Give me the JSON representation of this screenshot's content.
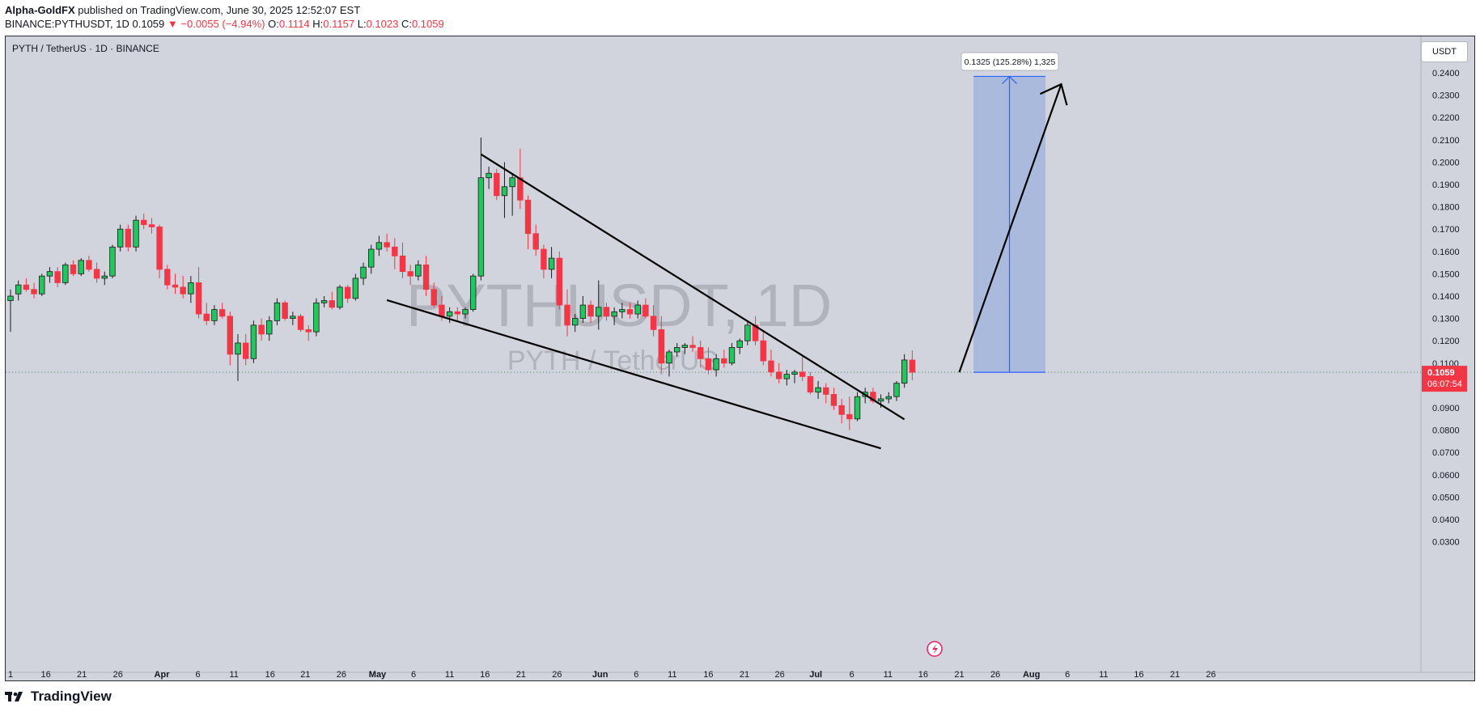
{
  "header": {
    "author": "Alpha-GoldFX",
    "published": "published on TradingView.com, June 30, 2025 12:52:07 EST",
    "symbol": "BINANCE:PYTHUSDT, 1D",
    "last": "0.1059",
    "change": "−0.0055 (−4.94%)",
    "o_label": "O:",
    "o": "0.1114",
    "h_label": "H:",
    "h": "0.1157",
    "l_label": "L:",
    "l": "0.1023",
    "c_label": "C:",
    "c": "0.1059"
  },
  "chart": {
    "symbol_title": "PYTH / TetherUS · 1D · BINANCE",
    "currency_button": "USDT",
    "watermark_big": "PYTHUSDT, 1D",
    "watermark_small": "PYTH / TetherUS",
    "price_tag": "0.1059",
    "countdown": "06:07:54",
    "measure_label": "0.1325 (125.28%) 1,325"
  },
  "chart_data": {
    "type": "candlestick",
    "ylim": [
      0.021,
      0.2505
    ],
    "y_ticks": [
      "0.2400",
      "0.2300",
      "0.2200",
      "0.2100",
      "0.2000",
      "0.1900",
      "0.1800",
      "0.1700",
      "0.1600",
      "0.1500",
      "0.1400",
      "0.1300",
      "0.1200",
      "0.1100",
      "0.0900",
      "0.0800",
      "0.0700",
      "0.0600",
      "0.0500",
      "0.0400",
      "0.0300"
    ],
    "x_ticks": [
      "1",
      "16",
      "21",
      "26",
      "Apr",
      "6",
      "11",
      "16",
      "21",
      "26",
      "May",
      "6",
      "11",
      "16",
      "21",
      "26",
      "Jun",
      "6",
      "11",
      "16",
      "21",
      "26",
      "Jul",
      "6",
      "11",
      "16",
      "21",
      "26",
      "Aug",
      "6",
      "11",
      "16",
      "21",
      "26"
    ],
    "candles": [
      [
        0.138,
        0.143,
        0.124,
        0.14
      ],
      [
        0.141,
        0.147,
        0.138,
        0.145
      ],
      [
        0.145,
        0.148,
        0.142,
        0.143
      ],
      [
        0.143,
        0.146,
        0.139,
        0.141
      ],
      [
        0.141,
        0.15,
        0.14,
        0.149
      ],
      [
        0.149,
        0.153,
        0.146,
        0.151
      ],
      [
        0.151,
        0.153,
        0.144,
        0.146
      ],
      [
        0.146,
        0.155,
        0.145,
        0.154
      ],
      [
        0.154,
        0.156,
        0.149,
        0.15
      ],
      [
        0.15,
        0.157,
        0.149,
        0.156
      ],
      [
        0.156,
        0.158,
        0.151,
        0.152
      ],
      [
        0.152,
        0.155,
        0.146,
        0.148
      ],
      [
        0.148,
        0.151,
        0.145,
        0.149
      ],
      [
        0.149,
        0.163,
        0.148,
        0.162
      ],
      [
        0.162,
        0.172,
        0.16,
        0.17
      ],
      [
        0.17,
        0.172,
        0.16,
        0.162
      ],
      [
        0.162,
        0.176,
        0.16,
        0.174
      ],
      [
        0.174,
        0.177,
        0.17,
        0.172
      ],
      [
        0.172,
        0.175,
        0.168,
        0.171
      ],
      [
        0.171,
        0.172,
        0.148,
        0.152
      ],
      [
        0.152,
        0.154,
        0.143,
        0.145
      ],
      [
        0.145,
        0.15,
        0.141,
        0.144
      ],
      [
        0.144,
        0.149,
        0.139,
        0.141
      ],
      [
        0.141,
        0.149,
        0.137,
        0.146
      ],
      [
        0.146,
        0.153,
        0.13,
        0.132
      ],
      [
        0.132,
        0.137,
        0.127,
        0.129
      ],
      [
        0.129,
        0.136,
        0.127,
        0.134
      ],
      [
        0.134,
        0.137,
        0.13,
        0.131
      ],
      [
        0.131,
        0.133,
        0.109,
        0.114
      ],
      [
        0.114,
        0.123,
        0.102,
        0.119
      ],
      [
        0.119,
        0.123,
        0.109,
        0.112
      ],
      [
        0.112,
        0.129,
        0.11,
        0.127
      ],
      [
        0.127,
        0.13,
        0.12,
        0.123
      ],
      [
        0.123,
        0.131,
        0.12,
        0.129
      ],
      [
        0.129,
        0.139,
        0.127,
        0.137
      ],
      [
        0.137,
        0.138,
        0.129,
        0.13
      ],
      [
        0.13,
        0.133,
        0.127,
        0.131
      ],
      [
        0.131,
        0.132,
        0.124,
        0.125
      ],
      [
        0.125,
        0.127,
        0.12,
        0.124
      ],
      [
        0.124,
        0.139,
        0.122,
        0.137
      ],
      [
        0.137,
        0.14,
        0.135,
        0.138
      ],
      [
        0.138,
        0.142,
        0.134,
        0.135
      ],
      [
        0.135,
        0.145,
        0.134,
        0.144
      ],
      [
        0.144,
        0.145,
        0.137,
        0.139
      ],
      [
        0.139,
        0.15,
        0.138,
        0.148
      ],
      [
        0.148,
        0.155,
        0.145,
        0.153
      ],
      [
        0.153,
        0.163,
        0.15,
        0.161
      ],
      [
        0.161,
        0.167,
        0.158,
        0.164
      ],
      [
        0.164,
        0.168,
        0.16,
        0.162
      ],
      [
        0.162,
        0.166,
        0.152,
        0.158
      ],
      [
        0.158,
        0.164,
        0.148,
        0.151
      ],
      [
        0.151,
        0.154,
        0.145,
        0.149
      ],
      [
        0.149,
        0.156,
        0.147,
        0.154
      ],
      [
        0.154,
        0.158,
        0.14,
        0.143
      ],
      [
        0.143,
        0.146,
        0.135,
        0.136
      ],
      [
        0.136,
        0.14,
        0.129,
        0.131
      ],
      [
        0.131,
        0.135,
        0.128,
        0.133
      ],
      [
        0.133,
        0.135,
        0.129,
        0.132
      ],
      [
        0.132,
        0.135,
        0.13,
        0.134
      ],
      [
        0.134,
        0.15,
        0.133,
        0.149
      ],
      [
        0.149,
        0.211,
        0.147,
        0.193
      ],
      [
        0.193,
        0.198,
        0.188,
        0.195
      ],
      [
        0.195,
        0.197,
        0.183,
        0.185
      ],
      [
        0.185,
        0.2,
        0.175,
        0.189
      ],
      [
        0.189,
        0.195,
        0.176,
        0.193
      ],
      [
        0.193,
        0.206,
        0.179,
        0.183
      ],
      [
        0.183,
        0.185,
        0.161,
        0.168
      ],
      [
        0.168,
        0.172,
        0.158,
        0.161
      ],
      [
        0.161,
        0.163,
        0.148,
        0.152
      ],
      [
        0.152,
        0.162,
        0.148,
        0.157
      ],
      [
        0.157,
        0.16,
        0.134,
        0.136
      ],
      [
        0.136,
        0.143,
        0.122,
        0.127
      ],
      [
        0.127,
        0.132,
        0.124,
        0.13
      ],
      [
        0.13,
        0.14,
        0.128,
        0.136
      ],
      [
        0.136,
        0.138,
        0.128,
        0.131
      ],
      [
        0.131,
        0.147,
        0.125,
        0.135
      ],
      [
        0.135,
        0.137,
        0.129,
        0.131
      ],
      [
        0.131,
        0.135,
        0.127,
        0.133
      ],
      [
        0.133,
        0.137,
        0.13,
        0.134
      ],
      [
        0.134,
        0.137,
        0.13,
        0.132
      ],
      [
        0.132,
        0.138,
        0.13,
        0.136
      ],
      [
        0.136,
        0.139,
        0.13,
        0.131
      ],
      [
        0.131,
        0.136,
        0.122,
        0.125
      ],
      [
        0.125,
        0.131,
        0.105,
        0.11
      ],
      [
        0.11,
        0.116,
        0.104,
        0.115
      ],
      [
        0.115,
        0.119,
        0.113,
        0.117
      ],
      [
        0.117,
        0.119,
        0.114,
        0.118
      ],
      [
        0.118,
        0.122,
        0.115,
        0.117
      ],
      [
        0.117,
        0.12,
        0.108,
        0.112
      ],
      [
        0.112,
        0.117,
        0.105,
        0.107
      ],
      [
        0.107,
        0.114,
        0.104,
        0.112
      ],
      [
        0.112,
        0.116,
        0.108,
        0.11
      ],
      [
        0.11,
        0.119,
        0.109,
        0.117
      ],
      [
        0.117,
        0.121,
        0.114,
        0.12
      ],
      [
        0.12,
        0.129,
        0.118,
        0.127
      ],
      [
        0.127,
        0.131,
        0.118,
        0.12
      ],
      [
        0.12,
        0.124,
        0.109,
        0.111
      ],
      [
        0.111,
        0.116,
        0.104,
        0.106
      ],
      [
        0.106,
        0.11,
        0.101,
        0.103
      ],
      [
        0.103,
        0.107,
        0.1,
        0.105
      ],
      [
        0.105,
        0.107,
        0.101,
        0.106
      ],
      [
        0.106,
        0.113,
        0.102,
        0.104
      ],
      [
        0.104,
        0.106,
        0.096,
        0.097
      ],
      [
        0.097,
        0.102,
        0.094,
        0.099
      ],
      [
        0.099,
        0.101,
        0.092,
        0.096
      ],
      [
        0.096,
        0.099,
        0.089,
        0.091
      ],
      [
        0.091,
        0.094,
        0.083,
        0.087
      ],
      [
        0.087,
        0.095,
        0.08,
        0.085
      ],
      [
        0.085,
        0.097,
        0.084,
        0.095
      ],
      [
        0.095,
        0.099,
        0.092,
        0.097
      ],
      [
        0.097,
        0.099,
        0.092,
        0.093
      ],
      [
        0.093,
        0.096,
        0.09,
        0.094
      ],
      [
        0.094,
        0.097,
        0.092,
        0.095
      ],
      [
        0.095,
        0.102,
        0.093,
        0.101
      ],
      [
        0.101,
        0.114,
        0.099,
        0.1114
      ],
      [
        0.1114,
        0.1157,
        0.1023,
        0.1059
      ]
    ],
    "trendlines": [
      {
        "from": [
          60,
          0.2035
        ],
        "to": [
          114,
          0.0848
        ]
      },
      {
        "from": [
          48,
          0.1382
        ],
        "to": [
          111,
          0.0718
        ]
      },
      {
        "from": [
          121,
          0.1059
        ],
        "to": [
          134,
          0.2349
        ]
      }
    ],
    "projection": {
      "from_price": 0.1059,
      "to_price": 0.2384
    },
    "last_price": 0.1059
  }
}
